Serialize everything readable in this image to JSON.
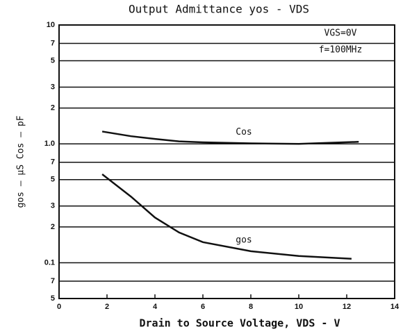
{
  "chart_data": {
    "type": "line",
    "title": "Output Admittance yos - VDS",
    "x_label": "Drain to Source Voltage, VDS - V",
    "y_label": "gos — μS   Cos — pF",
    "annotations": [
      "VGS=0V",
      "f=100MHz"
    ],
    "xlim": [
      0,
      14
    ],
    "xticks": [
      0,
      2,
      4,
      6,
      8,
      10,
      12,
      14
    ],
    "ylim": [
      0.05,
      10
    ],
    "log_y": true,
    "grid": true,
    "yticks": [
      10,
      7,
      5,
      3,
      2,
      {
        "value": 1,
        "label": "1.0"
      },
      {
        "value": 0.7,
        "label": "7"
      },
      {
        "value": 0.5,
        "label": "5"
      },
      {
        "value": 0.3,
        "label": "3"
      },
      {
        "value": 0.2,
        "label": "2"
      },
      0.1,
      {
        "value": 0.07,
        "label": "7"
      },
      {
        "value": 0.05,
        "label": "5"
      }
    ],
    "series": [
      {
        "name": "Cos",
        "color": "#111111",
        "x": [
          1.8,
          3,
          4,
          5,
          6,
          8,
          10,
          12.5
        ],
        "values": [
          1.27,
          1.16,
          1.1,
          1.05,
          1.03,
          1.01,
          1.0,
          1.04
        ]
      },
      {
        "name": "gos",
        "color": "#111111",
        "x": [
          1.8,
          3,
          4,
          5,
          6,
          8,
          10,
          12.2
        ],
        "values": [
          0.555,
          0.36,
          0.24,
          0.18,
          0.149,
          0.125,
          0.114,
          0.108
        ]
      }
    ]
  }
}
